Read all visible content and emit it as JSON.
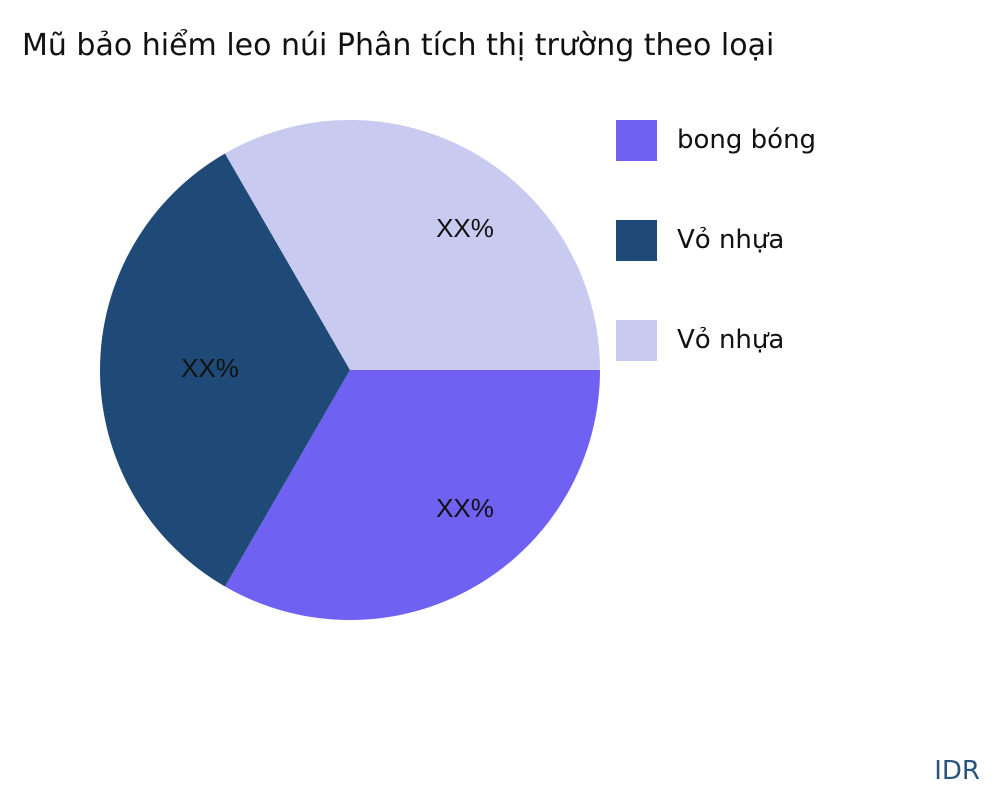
{
  "chart_data": {
    "type": "pie",
    "title": "Mũ bảo hiểm leo núi Phân tích thị trường theo loại",
    "slices": [
      {
        "name": "bong bóng",
        "value": 33.33,
        "label": "XX%",
        "color": "#6f61f1"
      },
      {
        "name": "Vỏ nhựa",
        "value": 33.33,
        "label": "XX%",
        "color": "#1f4a78"
      },
      {
        "name": "Vỏ nhựa",
        "value": 33.33,
        "label": "XX%",
        "color": "#c9caf0"
      }
    ],
    "legend_position": "right"
  },
  "brand": "IDR"
}
